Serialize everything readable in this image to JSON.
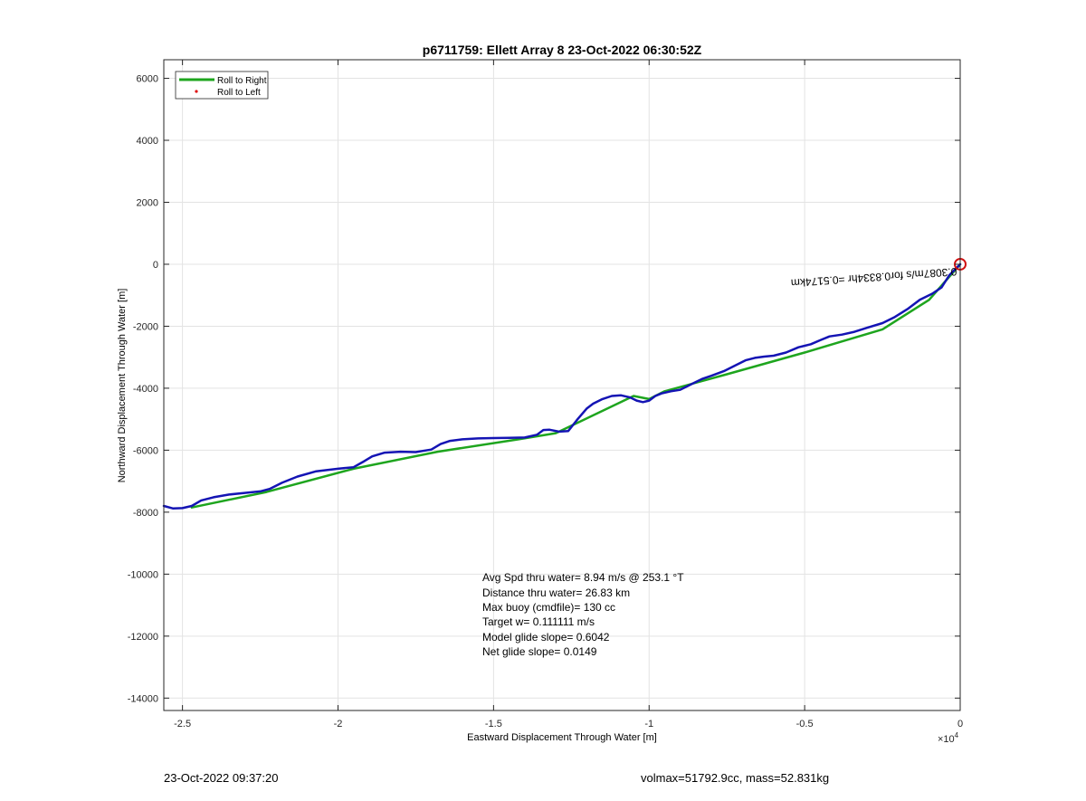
{
  "chart_data": {
    "type": "line",
    "title": "p6711759: Ellett Array 8 23-Oct-2022 06:30:52Z",
    "xlabel": "Eastward Displacement Through Water [m]",
    "ylabel": "Northward Displacement Through Water [m]",
    "x_exponent_label": "×10",
    "x_exponent_power": "4",
    "xlim": [
      -25600,
      0
    ],
    "ylim": [
      -14400,
      6600
    ],
    "x_tick_values": [
      -25000,
      -20000,
      -15000,
      -10000,
      -5000,
      0
    ],
    "x_tick_labels": [
      "-2.5",
      "-2",
      "-1.5",
      "-1",
      "-0.5",
      "0"
    ],
    "y_tick_values": [
      6000,
      4000,
      2000,
      0,
      -2000,
      -4000,
      -6000,
      -8000,
      -10000,
      -12000,
      -14000
    ],
    "y_tick_labels": [
      "6000",
      "4000",
      "2000",
      "0",
      "-2000",
      "-4000",
      "-6000",
      "-8000",
      "-10000",
      "-12000",
      "-14000"
    ],
    "grid": true,
    "legend_position": "top-left",
    "legend": [
      {
        "label": "Roll to Right",
        "color": "#1ea51e",
        "marker": "line"
      },
      {
        "label": "Roll to Left",
        "color": "#e01010",
        "marker": "dot"
      }
    ],
    "series": [
      {
        "name": "Roll to Right",
        "color": "#1ea51e",
        "x": [
          -24700,
          -22300,
          -19500,
          -16800,
          -14200,
          -13000,
          -10500,
          -10000,
          -9500,
          -7500,
          -5000,
          -2500,
          -1000,
          0
        ],
        "y": [
          -7850,
          -7350,
          -6600,
          -6050,
          -5650,
          -5450,
          -4250,
          -4350,
          -4100,
          -3550,
          -2850,
          -2100,
          -1150,
          0
        ]
      },
      {
        "color": "#1414b4",
        "x": [
          -25600,
          -25300,
          -25000,
          -24700,
          -24400,
          -24000,
          -23500,
          -23000,
          -22500,
          -22200,
          -21800,
          -21300,
          -20700,
          -20000,
          -19500,
          -19200,
          -18900,
          -18500,
          -18000,
          -17500,
          -17000,
          -16700,
          -16400,
          -16000,
          -15500,
          -15000,
          -14500,
          -14000,
          -13600,
          -13400,
          -13200,
          -12900,
          -12600,
          -12300,
          -12000,
          -11800,
          -11500,
          -11200,
          -10900,
          -10600,
          -10400,
          -10200,
          -10000,
          -9800,
          -9600,
          -9300,
          -9000,
          -8600,
          -8300,
          -8000,
          -7600,
          -7200,
          -6900,
          -6600,
          -6300,
          -6000,
          -5600,
          -5200,
          -4800,
          -4500,
          -4200,
          -3800,
          -3400,
          -3000,
          -2500,
          -2100,
          -1700,
          -1300,
          -900,
          -600,
          -350,
          -150,
          0
        ],
        "y": [
          -7800,
          -7880,
          -7870,
          -7800,
          -7620,
          -7520,
          -7430,
          -7380,
          -7330,
          -7250,
          -7050,
          -6850,
          -6680,
          -6600,
          -6550,
          -6380,
          -6200,
          -6080,
          -6050,
          -6060,
          -5980,
          -5800,
          -5700,
          -5650,
          -5620,
          -5610,
          -5600,
          -5590,
          -5500,
          -5350,
          -5340,
          -5400,
          -5380,
          -5000,
          -4650,
          -4500,
          -4350,
          -4250,
          -4230,
          -4300,
          -4400,
          -4450,
          -4400,
          -4250,
          -4170,
          -4100,
          -4050,
          -3850,
          -3700,
          -3600,
          -3450,
          -3250,
          -3100,
          -3020,
          -2980,
          -2950,
          -2850,
          -2680,
          -2580,
          -2450,
          -2330,
          -2270,
          -2180,
          -2050,
          -1900,
          -1700,
          -1450,
          -1150,
          -950,
          -750,
          -350,
          -150,
          0
        ]
      }
    ],
    "endpoint_marker": {
      "x": 0,
      "y": 0,
      "color": "#d01010"
    },
    "rotated_annotation": "0.3087m/s for0.8334hr =0.5174km",
    "text_box": [
      "Avg Spd thru water=  8.94 m/s @ 253.1 °T",
      "Distance thru water= 26.83 km",
      "Max buoy (cmdfile)= 130 cc",
      "Target w= 0.111111 m/s",
      "Model glide slope= 0.6042",
      "Net glide slope= 0.0149"
    ]
  },
  "footer": {
    "left": "23-Oct-2022 09:37:20",
    "right": "volmax=51792.9cc, mass=52.831kg"
  }
}
